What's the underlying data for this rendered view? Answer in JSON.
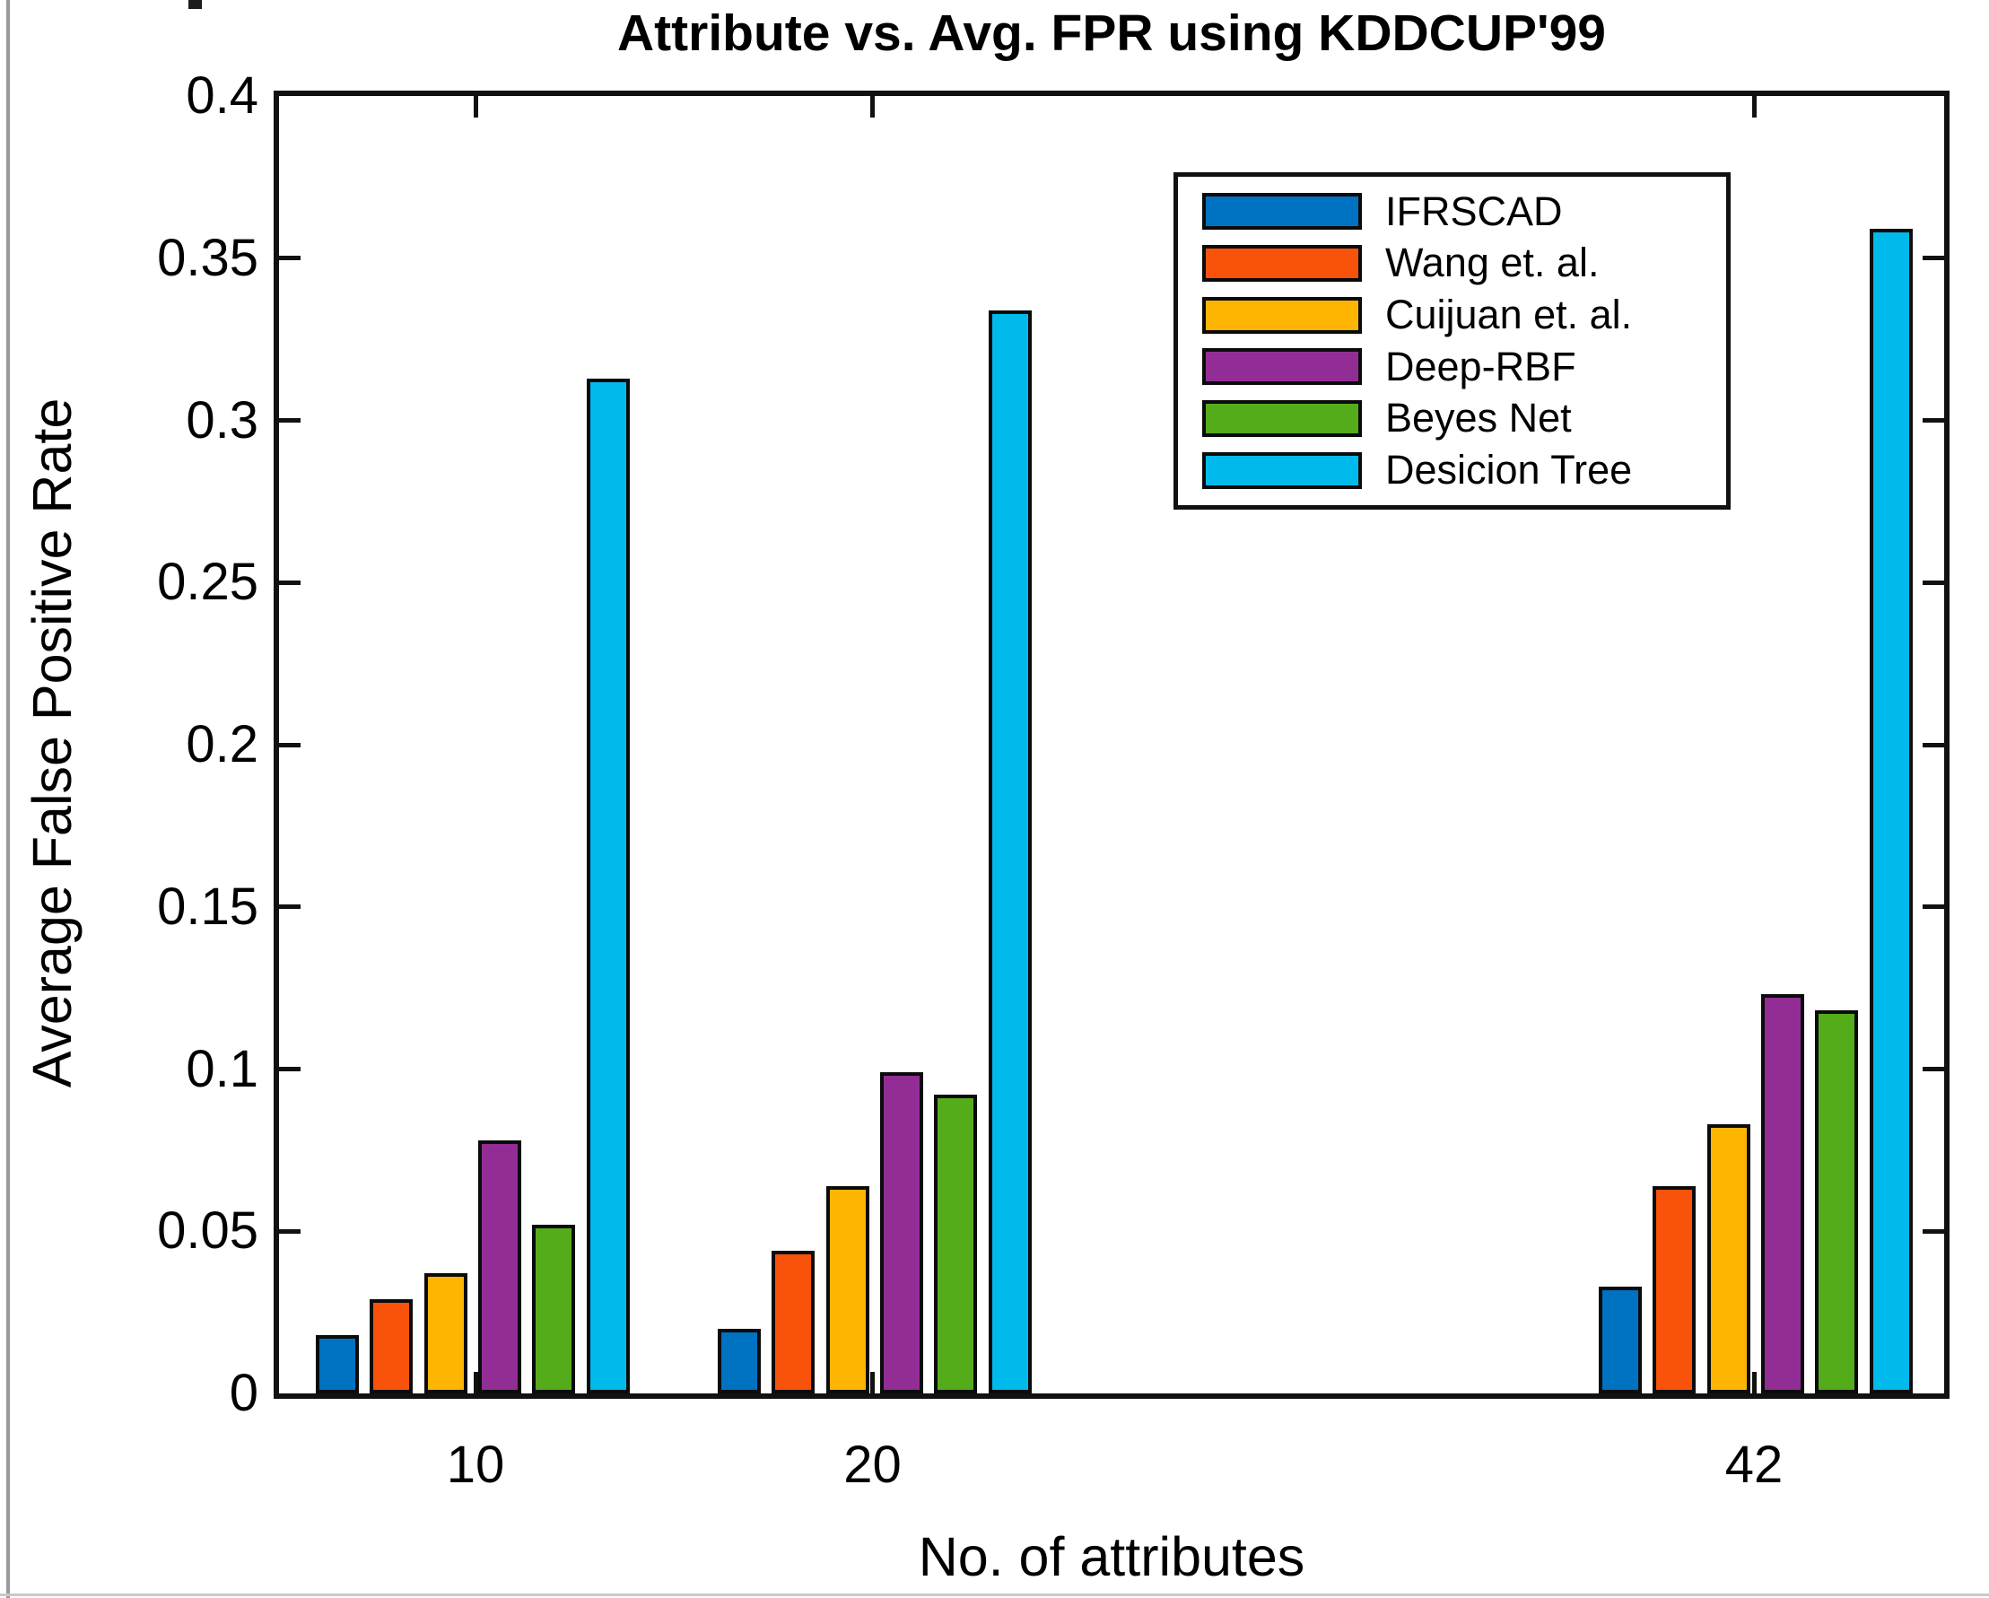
{
  "chart_data": {
    "type": "bar",
    "title": "Attribute vs. Avg. FPR using KDDCUP'99",
    "xlabel": "No. of attributes",
    "ylabel": "Average False Positive Rate",
    "categories": [
      "10",
      "20",
      "42"
    ],
    "series": [
      {
        "name": "IFRSCAD",
        "color": "#0072C2",
        "values": [
          0.018,
          0.02,
          0.033
        ]
      },
      {
        "name": "Wang et. al.",
        "color": "#F8520B",
        "values": [
          0.029,
          0.044,
          0.064
        ]
      },
      {
        "name": "Cuijuan et. al.",
        "color": "#FEB502",
        "values": [
          0.037,
          0.064,
          0.083
        ]
      },
      {
        "name": "Deep-RBF",
        "color": "#932D96",
        "values": [
          0.078,
          0.099,
          0.123
        ]
      },
      {
        "name": "Beyes Net",
        "color": "#55AC1A",
        "values": [
          0.052,
          0.092,
          0.118
        ]
      },
      {
        "name": "Desicion Tree",
        "color": "#00BAEC",
        "values": [
          0.313,
          0.334,
          0.359
        ]
      }
    ],
    "ylim": [
      0,
      0.4
    ],
    "yticks": [
      "0",
      "0.05",
      "0.1",
      "0.15",
      "0.2",
      "0.25",
      "0.3",
      "0.35",
      "0.4"
    ],
    "legend_position": "upper-right-inside",
    "grid": false,
    "axis_color": "#111111"
  }
}
